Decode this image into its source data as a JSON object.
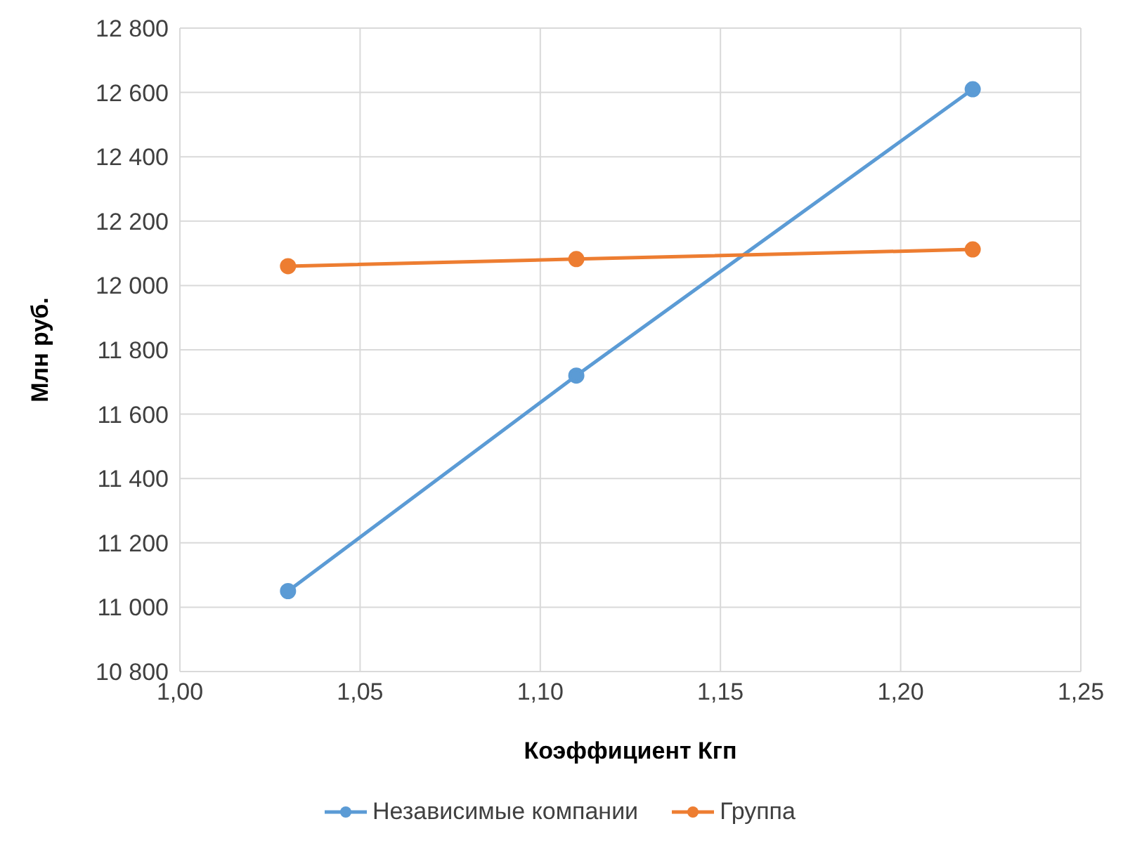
{
  "chart_data": {
    "type": "line",
    "xlabel": "Коэффициент Кгп",
    "ylabel": "Млн руб.",
    "x": [
      1.03,
      1.11,
      1.22
    ],
    "series": [
      {
        "name": "Независимые компании",
        "color": "#5b9bd5",
        "values": [
          11050,
          11720,
          12610
        ]
      },
      {
        "name": "Группа",
        "color": "#ed7d31",
        "values": [
          12060,
          12082,
          12112
        ]
      }
    ],
    "xlim": [
      1.0,
      1.25
    ],
    "xticks": [
      {
        "value": 1.0,
        "label": "1,00"
      },
      {
        "value": 1.05,
        "label": "1,05"
      },
      {
        "value": 1.1,
        "label": "1,10"
      },
      {
        "value": 1.15,
        "label": "1,15"
      },
      {
        "value": 1.2,
        "label": "1,20"
      },
      {
        "value": 1.25,
        "label": "1,25"
      }
    ],
    "ylim": [
      10800,
      12800
    ],
    "yticks": [
      {
        "value": 10800,
        "label": "10 800"
      },
      {
        "value": 11000,
        "label": "11 000"
      },
      {
        "value": 11200,
        "label": "11 200"
      },
      {
        "value": 11400,
        "label": "11 400"
      },
      {
        "value": 11600,
        "label": "11 600"
      },
      {
        "value": 11800,
        "label": "11 800"
      },
      {
        "value": 12000,
        "label": "12 000"
      },
      {
        "value": 12200,
        "label": "12 200"
      },
      {
        "value": 12400,
        "label": "12 400"
      },
      {
        "value": 12600,
        "label": "12 600"
      },
      {
        "value": 12800,
        "label": "12 800"
      }
    ],
    "grid": true,
    "legend": "bottom",
    "marker": "circle",
    "line_style": "solid"
  }
}
